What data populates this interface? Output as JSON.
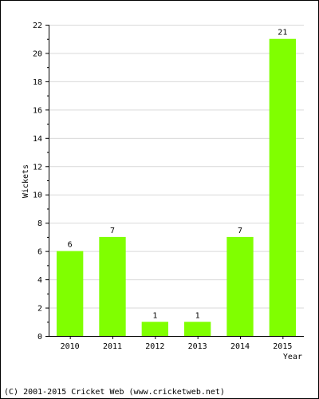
{
  "chart_data": {
    "type": "bar",
    "categories": [
      "2010",
      "2011",
      "2012",
      "2013",
      "2014",
      "2015"
    ],
    "values": [
      6,
      7,
      1,
      1,
      7,
      21
    ],
    "xlabel": "Year",
    "ylabel": "Wickets",
    "ylim": [
      0,
      22
    ],
    "yticks": [
      0,
      2,
      4,
      6,
      8,
      10,
      12,
      14,
      16,
      18,
      20,
      22
    ],
    "grid": true,
    "bar_color": "#80ff00",
    "data_labels": true
  },
  "footer": {
    "credit": "(C) 2001-2015 Cricket Web (www.cricketweb.net)"
  }
}
